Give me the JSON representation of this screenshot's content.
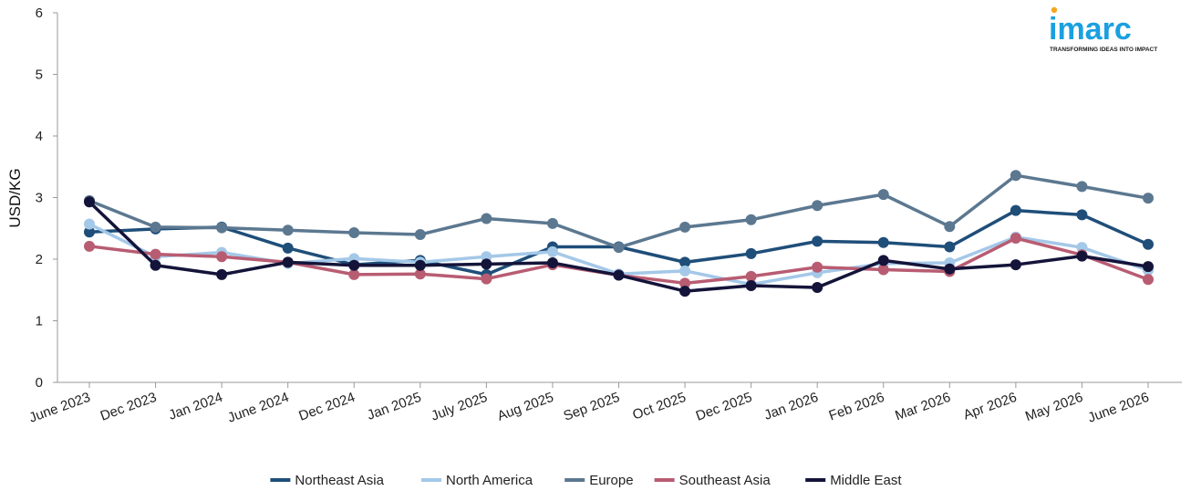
{
  "logo": {
    "name": "imarc",
    "tagline": "TRANSFORMING IDEAS INTO IMPACT",
    "color": "#1aa0e0",
    "accent": "#f5a623"
  },
  "chart_data": {
    "type": "line",
    "title": "",
    "xlabel": "",
    "ylabel": "USD/KG",
    "ylim": [
      0,
      6
    ],
    "yticks": [
      0,
      1,
      2,
      3,
      4,
      5,
      6
    ],
    "grid": false,
    "legend_position": "bottom",
    "categories": [
      "June 2023",
      "Dec 2023",
      "Jan 2024",
      "June 2024",
      "Dec 2024",
      "Jan 2025",
      "July 2025",
      "Aug 2025",
      "Sep 2025",
      "Oct 2025",
      "Dec 2025",
      "Jan 2026",
      "Feb 2026",
      "Mar 2026",
      "Apr 2026",
      "May 2026",
      "June 2026"
    ],
    "series": [
      {
        "name": "Northeast Asia",
        "color": "#1f4e79",
        "values": [
          2.44,
          2.49,
          2.52,
          2.18,
          1.91,
          1.98,
          1.75,
          2.2,
          2.2,
          1.95,
          2.09,
          2.29,
          2.27,
          2.2,
          2.79,
          2.72,
          2.24
        ]
      },
      {
        "name": "North America",
        "color": "#a4c8e8",
        "values": [
          2.57,
          2.04,
          2.11,
          1.93,
          2.01,
          1.95,
          2.04,
          2.12,
          1.76,
          1.81,
          1.59,
          1.78,
          1.93,
          1.94,
          2.36,
          2.19,
          1.82
        ]
      },
      {
        "name": "Europe",
        "color": "#5c7890",
        "values": [
          2.95,
          2.52,
          2.51,
          2.47,
          2.43,
          2.4,
          2.66,
          2.58,
          2.19,
          2.52,
          2.64,
          2.87,
          3.05,
          2.53,
          3.36,
          3.18,
          2.99
        ]
      },
      {
        "name": "Southeast Asia",
        "color": "#b85c72",
        "values": [
          2.21,
          2.08,
          2.04,
          1.95,
          1.75,
          1.76,
          1.68,
          1.91,
          1.74,
          1.61,
          1.72,
          1.87,
          1.83,
          1.8,
          2.34,
          2.07,
          1.67
        ]
      },
      {
        "name": "Middle East",
        "color": "#14143a",
        "values": [
          2.93,
          1.9,
          1.75,
          1.95,
          1.9,
          1.9,
          1.92,
          1.94,
          1.74,
          1.48,
          1.57,
          1.54,
          1.98,
          1.84,
          1.91,
          2.05,
          1.88
        ]
      }
    ]
  }
}
